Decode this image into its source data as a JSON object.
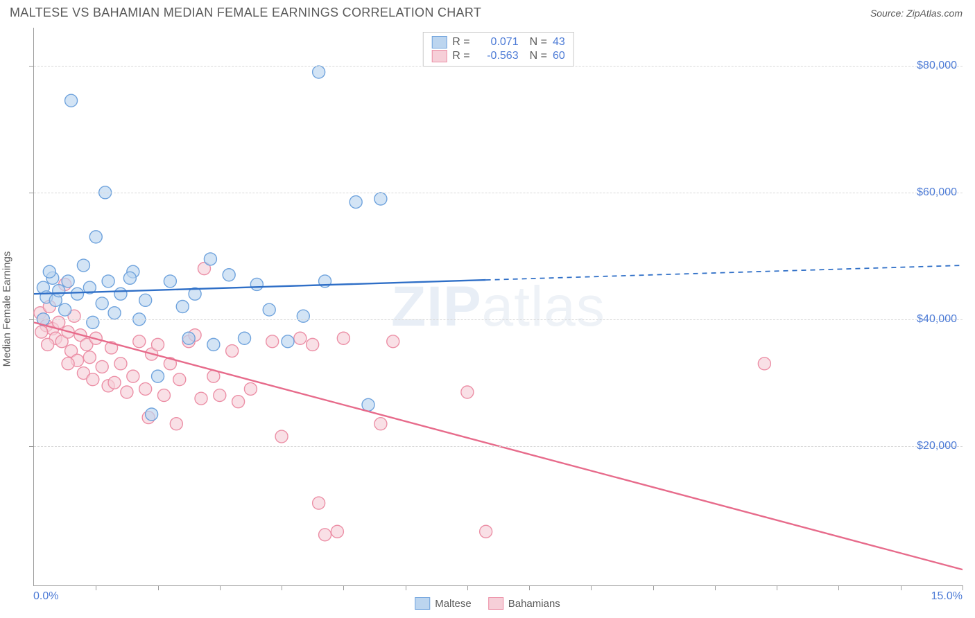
{
  "title": "MALTESE VS BAHAMIAN MEDIAN FEMALE EARNINGS CORRELATION CHART",
  "source_label": "Source: ZipAtlas.com",
  "watermark": {
    "bold": "ZIP",
    "light": "atlas"
  },
  "y_axis_title": "Median Female Earnings",
  "chart": {
    "type": "scatter",
    "xlim": [
      0,
      15
    ],
    "ylim": [
      -2000,
      86000
    ],
    "x_tick_positions": [
      0,
      1,
      2,
      3,
      4,
      5,
      6,
      7,
      8,
      9,
      10,
      11,
      12,
      13,
      14,
      15
    ],
    "x_labels": {
      "min": "0.0%",
      "max": "15.0%"
    },
    "y_ticks": [
      20000,
      40000,
      60000,
      80000
    ],
    "y_tick_labels": [
      "$20,000",
      "$40,000",
      "$60,000",
      "$80,000"
    ],
    "grid_color": "#d8d8d8",
    "axis_color": "#9a9a9a",
    "background_color": "#ffffff",
    "marker_radius": 9,
    "marker_stroke_width": 1.4,
    "line_width": 2.4
  },
  "series": [
    {
      "name": "Maltese",
      "color_fill": "#bcd5ef",
      "color_stroke": "#6fa3dd",
      "line_color": "#2f6fc7",
      "R": "0.071",
      "N": "43",
      "trend": {
        "x1": 0,
        "y1": 44000,
        "solid_x2": 7.3,
        "solid_y2": 46200,
        "dash_x2": 15,
        "dash_y2": 48500
      },
      "points": [
        [
          0.15,
          45000
        ],
        [
          0.2,
          43500
        ],
        [
          0.3,
          46500
        ],
        [
          0.35,
          43000
        ],
        [
          0.4,
          44500
        ],
        [
          0.5,
          41500
        ],
        [
          0.55,
          46000
        ],
        [
          0.6,
          74500
        ],
        [
          0.7,
          44000
        ],
        [
          0.8,
          48500
        ],
        [
          0.9,
          45000
        ],
        [
          1.0,
          53000
        ],
        [
          1.1,
          42500
        ],
        [
          1.15,
          60000
        ],
        [
          1.2,
          46000
        ],
        [
          1.3,
          41000
        ],
        [
          1.4,
          44000
        ],
        [
          1.6,
          47500
        ],
        [
          1.7,
          40000
        ],
        [
          1.8,
          43000
        ],
        [
          1.9,
          25000
        ],
        [
          2.0,
          31000
        ],
        [
          2.2,
          46000
        ],
        [
          2.4,
          42000
        ],
        [
          2.5,
          37000
        ],
        [
          2.6,
          44000
        ],
        [
          2.85,
          49500
        ],
        [
          2.9,
          36000
        ],
        [
          3.15,
          47000
        ],
        [
          3.4,
          37000
        ],
        [
          3.6,
          45500
        ],
        [
          3.8,
          41500
        ],
        [
          4.1,
          36500
        ],
        [
          4.35,
          40500
        ],
        [
          4.6,
          79000
        ],
        [
          4.7,
          46000
        ],
        [
          5.2,
          58500
        ],
        [
          5.6,
          59000
        ],
        [
          5.4,
          26500
        ],
        [
          0.15,
          40000
        ],
        [
          0.95,
          39500
        ],
        [
          1.55,
          46500
        ],
        [
          0.25,
          47500
        ]
      ]
    },
    {
      "name": "Bahamians",
      "color_fill": "#f6cfd8",
      "color_stroke": "#ec8fa6",
      "line_color": "#e76b8b",
      "R": "-0.563",
      "N": "60",
      "trend": {
        "x1": 0,
        "y1": 39500,
        "solid_x2": 15,
        "solid_y2": 500,
        "dash_x2": 15,
        "dash_y2": 500
      },
      "points": [
        [
          0.1,
          41000
        ],
        [
          0.15,
          40000
        ],
        [
          0.2,
          39000
        ],
        [
          0.25,
          42000
        ],
        [
          0.3,
          38500
        ],
        [
          0.35,
          37000
        ],
        [
          0.4,
          39500
        ],
        [
          0.45,
          36500
        ],
        [
          0.5,
          45500
        ],
        [
          0.55,
          38000
        ],
        [
          0.6,
          35000
        ],
        [
          0.65,
          40500
        ],
        [
          0.7,
          33500
        ],
        [
          0.75,
          37500
        ],
        [
          0.8,
          31500
        ],
        [
          0.85,
          36000
        ],
        [
          0.9,
          34000
        ],
        [
          0.95,
          30500
        ],
        [
          1.0,
          37000
        ],
        [
          1.1,
          32500
        ],
        [
          1.2,
          29500
        ],
        [
          1.25,
          35500
        ],
        [
          1.3,
          30000
        ],
        [
          1.4,
          33000
        ],
        [
          1.5,
          28500
        ],
        [
          1.6,
          31000
        ],
        [
          1.7,
          36500
        ],
        [
          1.8,
          29000
        ],
        [
          1.85,
          24500
        ],
        [
          1.9,
          34500
        ],
        [
          2.0,
          36000
        ],
        [
          2.1,
          28000
        ],
        [
          2.2,
          33000
        ],
        [
          2.3,
          23500
        ],
        [
          2.35,
          30500
        ],
        [
          2.5,
          36500
        ],
        [
          2.6,
          37500
        ],
        [
          2.7,
          27500
        ],
        [
          2.75,
          48000
        ],
        [
          2.9,
          31000
        ],
        [
          3.0,
          28000
        ],
        [
          3.2,
          35000
        ],
        [
          3.3,
          27000
        ],
        [
          3.5,
          29000
        ],
        [
          3.85,
          36500
        ],
        [
          4.0,
          21500
        ],
        [
          4.3,
          37000
        ],
        [
          4.5,
          36000
        ],
        [
          4.6,
          11000
        ],
        [
          4.7,
          6000
        ],
        [
          4.9,
          6500
        ],
        [
          5.0,
          37000
        ],
        [
          5.6,
          23500
        ],
        [
          5.8,
          36500
        ],
        [
          7.0,
          28500
        ],
        [
          7.3,
          6500
        ],
        [
          11.8,
          33000
        ],
        [
          0.12,
          38000
        ],
        [
          0.22,
          36000
        ],
        [
          0.55,
          33000
        ]
      ]
    }
  ],
  "legend_top": {
    "R_label": "R =",
    "N_label": "N ="
  },
  "legend_bottom": [
    "Maltese",
    "Bahamians"
  ]
}
